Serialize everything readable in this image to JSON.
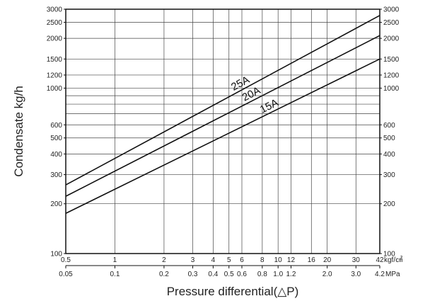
{
  "chart_data": {
    "type": "line",
    "xlabel": "Pressure differential(△P)",
    "ylabel": "Condensate  kg/h",
    "x_scale": "log",
    "y_scale": "log",
    "xlim": [
      0.5,
      42
    ],
    "ylim": [
      100,
      3000
    ],
    "grid": true,
    "x_ticks": [
      "0.5",
      "1",
      "2",
      "3",
      "4",
      "5",
      "6",
      "8",
      "10",
      "12",
      "16",
      "20",
      "30",
      "42"
    ],
    "x_tick_values": [
      0.5,
      1,
      2,
      3,
      4,
      5,
      6,
      8,
      10,
      12,
      16,
      20,
      30,
      42
    ],
    "x_unit": "kgf/㎠",
    "x2_ticks": [
      "0.05",
      "0.1",
      "0.2",
      "0.3",
      "0.4",
      "0.5",
      "0.6",
      "0.8",
      "1.0",
      "1.2",
      "2.0",
      "3.0",
      "4.2"
    ],
    "x2_tick_positions": [
      0.5,
      1,
      2,
      3,
      4,
      5,
      6,
      8,
      10,
      12,
      20,
      30,
      42
    ],
    "x2_unit": "MPa",
    "y_ticks": [
      "100",
      "200",
      "300",
      "400",
      "500",
      "600",
      "1000",
      "1200",
      "1500",
      "2000",
      "2500",
      "3000"
    ],
    "y_tick_values": [
      100,
      200,
      300,
      400,
      500,
      600,
      1000,
      1200,
      1500,
      2000,
      2500,
      3000
    ],
    "y_gridlines": [
      100,
      200,
      300,
      400,
      500,
      600,
      700,
      800,
      900,
      1000,
      1200,
      1500,
      2000,
      2500,
      3000
    ],
    "series": [
      {
        "name": "25A",
        "x": [
          0.5,
          42
        ],
        "y": [
          260,
          2750
        ]
      },
      {
        "name": "20A",
        "x": [
          0.5,
          42
        ],
        "y": [
          222,
          2080
        ]
      },
      {
        "name": "15A",
        "x": [
          0.5,
          42
        ],
        "y": [
          175,
          1500
        ]
      }
    ],
    "label_positions_x": [
      6,
      7,
      9
    ],
    "colors": {
      "line": "#111111",
      "grid": "#444444",
      "text": "#222222"
    }
  }
}
